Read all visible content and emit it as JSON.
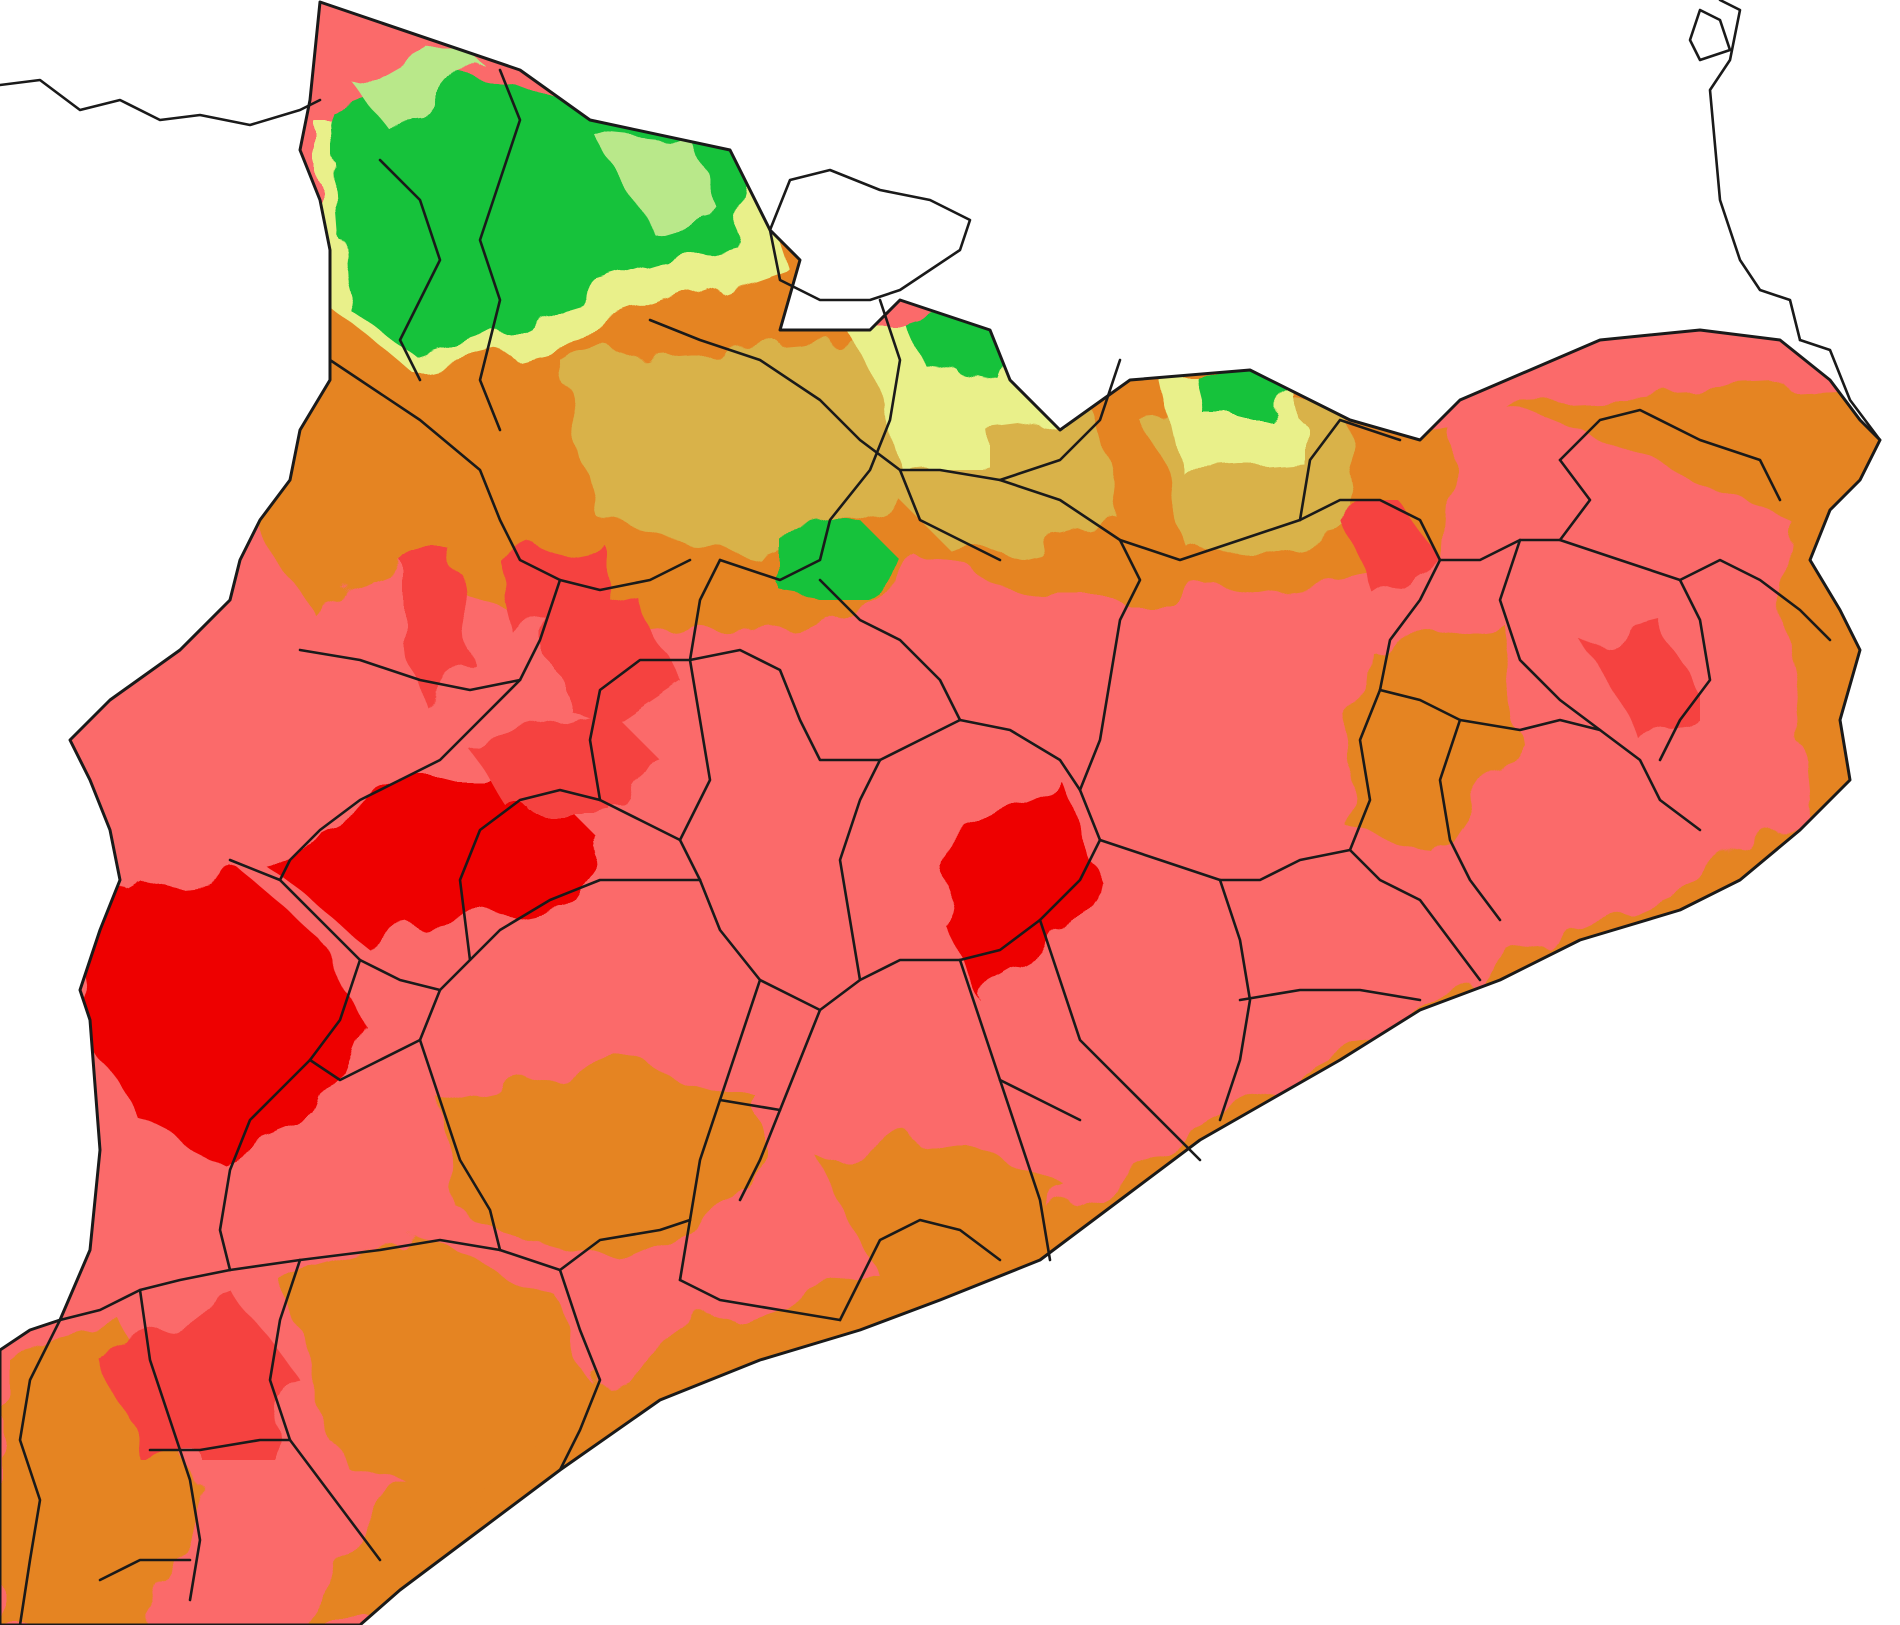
{
  "map": {
    "region": "Catalonia",
    "legend_shown": false,
    "title_shown": false,
    "color_scale": [
      {
        "class": "highest",
        "color": "#ee0000"
      },
      {
        "class": "very-high",
        "color": "#f5433f"
      },
      {
        "class": "high",
        "color": "#fb6a6a"
      },
      {
        "class": "moderate",
        "color": "#e58424"
      },
      {
        "class": "low",
        "color": "#d9b24a"
      },
      {
        "class": "very-low",
        "color": "#e9f08a"
      },
      {
        "class": "minimal",
        "color": "#16c23a"
      }
    ],
    "sea_color": "#ffffff",
    "outside_region_color": "#ffffff",
    "border_color": "#1a1a1a"
  }
}
